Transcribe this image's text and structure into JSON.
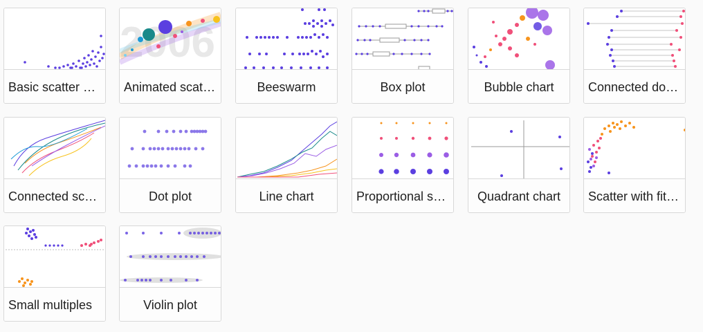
{
  "gallery": {
    "cards": [
      {
        "label": "Basic scatter plot",
        "thumb_icon": "basic-scatter-thumbnail"
      },
      {
        "label": "Animated scatter plot",
        "thumb_icon": "animated-scatter-thumbnail",
        "watermark": "2006"
      },
      {
        "label": "Beeswarm",
        "thumb_icon": "beeswarm-thumbnail"
      },
      {
        "label": "Box plot",
        "thumb_icon": "box-plot-thumbnail"
      },
      {
        "label": "Bubble chart",
        "thumb_icon": "bubble-chart-thumbnail"
      },
      {
        "label": "Connected dot plot",
        "thumb_icon": "connected-dot-thumbnail"
      },
      {
        "label": "Connected scatter plot",
        "thumb_icon": "connected-scatter-thumbnail"
      },
      {
        "label": "Dot plot",
        "thumb_icon": "dot-plot-thumbnail"
      },
      {
        "label": "Line chart",
        "thumb_icon": "line-chart-thumbnail"
      },
      {
        "label": "Proportional symbol plot",
        "thumb_icon": "proportional-symbol-thumbnail"
      },
      {
        "label": "Quadrant chart",
        "thumb_icon": "quadrant-chart-thumbnail"
      },
      {
        "label": "Scatter with fit line",
        "thumb_icon": "scatter-fit-thumbnail"
      },
      {
        "label": "Small multiples",
        "thumb_icon": "small-multiples-thumbnail"
      },
      {
        "label": "Violin plot",
        "thumb_icon": "violin-plot-thumbnail"
      }
    ],
    "colors": {
      "purple": "#5b3fe0",
      "violet": "#9b5de5",
      "pink": "#f0507a",
      "orange": "#f7941d",
      "teal": "#1a8a8a",
      "gray": "#cccccc"
    }
  }
}
